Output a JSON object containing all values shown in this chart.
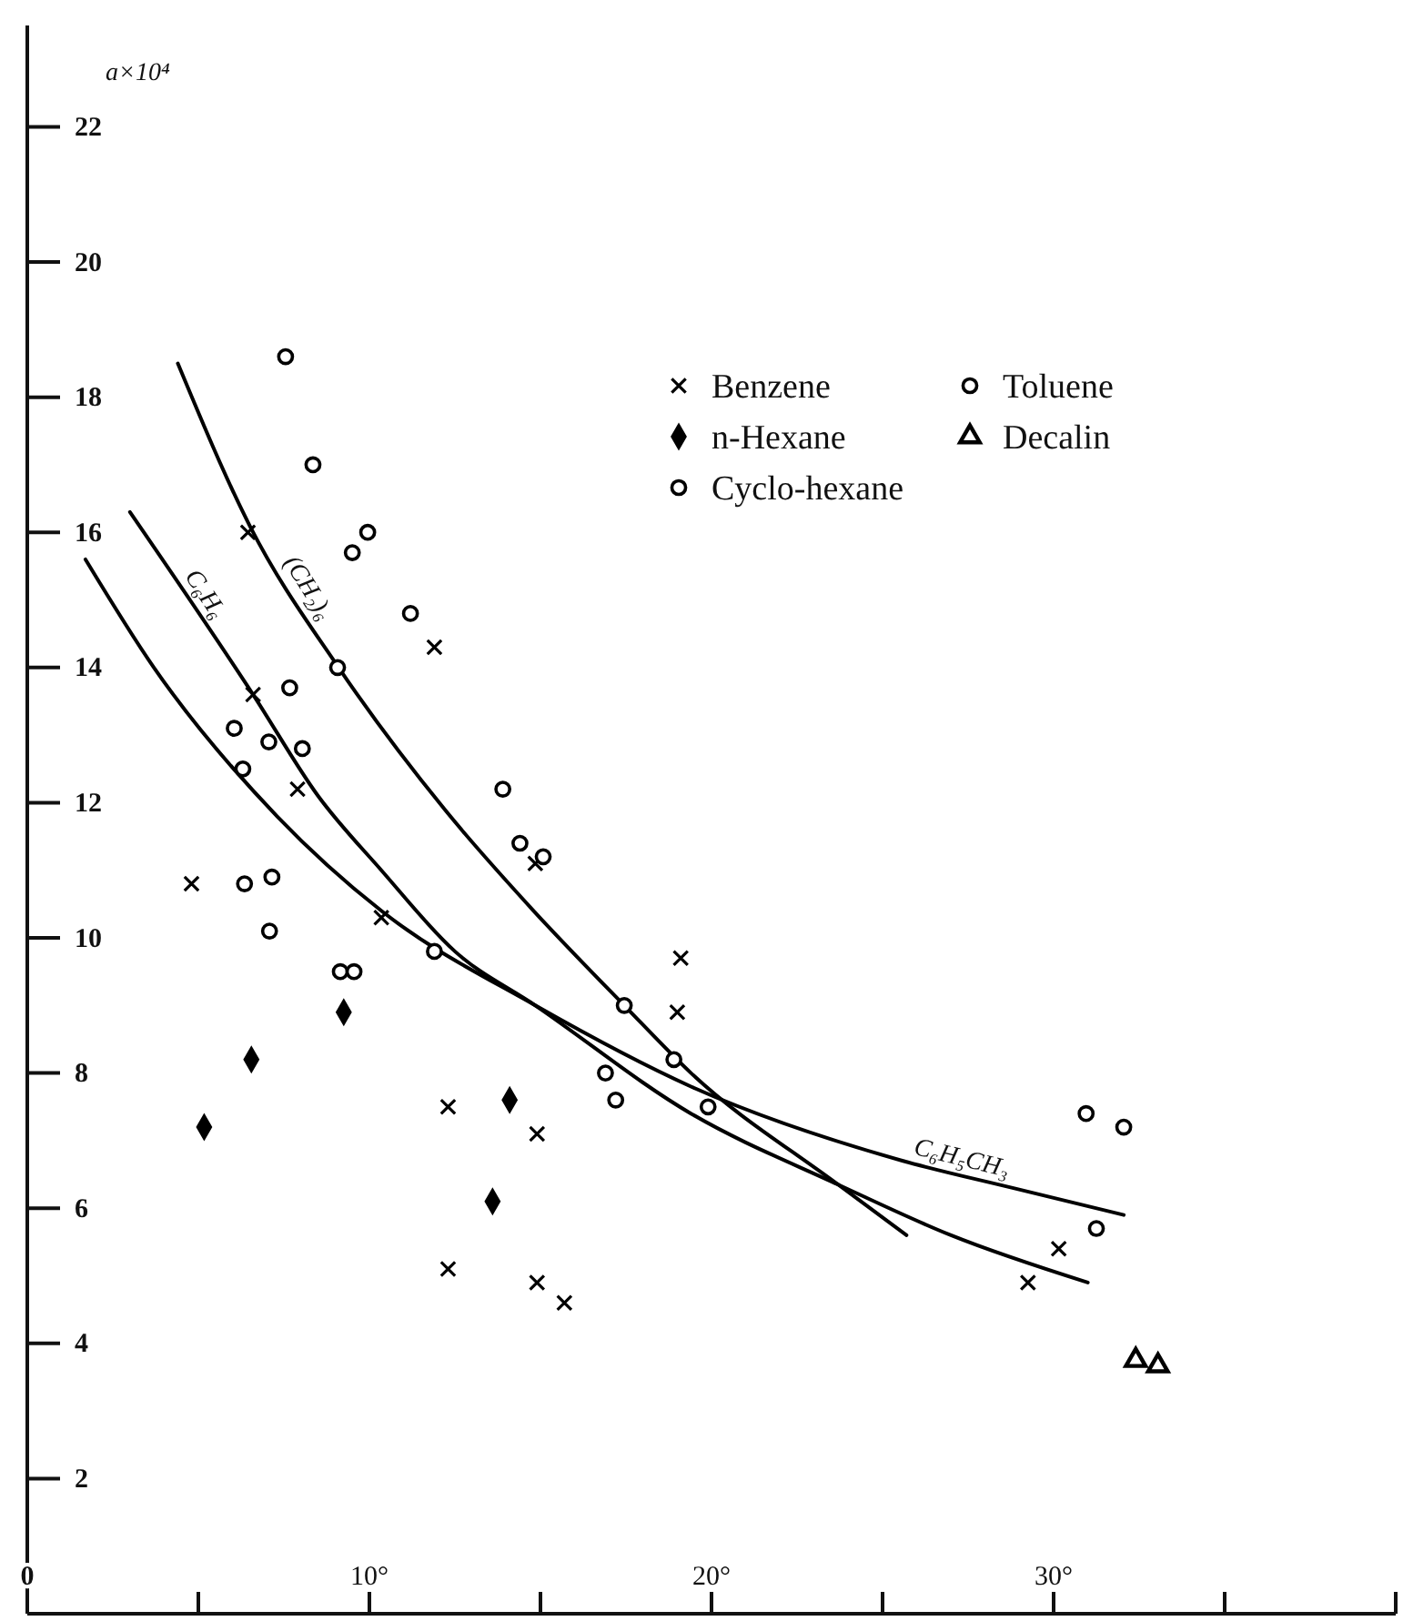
{
  "chart_data": {
    "type": "scatter",
    "ylabel": "a×10⁴",
    "xlim": [
      0,
      40
    ],
    "ylim": [
      0,
      23.5
    ],
    "xticks": [
      {
        "value": 0,
        "label": "0"
      },
      {
        "value": 5,
        "label": null
      },
      {
        "value": 10,
        "label": "10°"
      },
      {
        "value": 15,
        "label": null
      },
      {
        "value": 20,
        "label": "20°"
      },
      {
        "value": 25,
        "label": null
      },
      {
        "value": 30,
        "label": "30°"
      },
      {
        "value": 35,
        "label": null
      },
      {
        "value": 40,
        "label": null
      }
    ],
    "yticks": [
      2,
      4,
      6,
      8,
      10,
      12,
      14,
      16,
      18,
      20,
      22
    ],
    "grid": false,
    "legend": "top right",
    "series": [
      {
        "name": "Benzene",
        "type": "scatter",
        "marker": "cross",
        "color": "#000000",
        "x": [
          6.45,
          6.6,
          7.9,
          11.9,
          4.8,
          10.35,
          12.3,
          14.9,
          12.3,
          14.9,
          15.7,
          19.1,
          19.0,
          14.85,
          30.15,
          29.25
        ],
        "values": [
          16.0,
          13.6,
          12.2,
          14.3,
          10.8,
          10.3,
          7.5,
          7.1,
          5.1,
          4.9,
          4.6,
          9.7,
          8.9,
          11.1,
          5.4,
          4.9
        ]
      },
      {
        "name": "Toluene",
        "type": "scatter",
        "marker": "circle",
        "color": "#000000",
        "x": [
          7.55,
          7.67,
          6.05,
          6.3,
          6.35,
          7.08,
          11.9,
          14.4,
          16.9,
          17.2,
          30.95,
          32.05,
          31.25
        ],
        "values": [
          18.6,
          13.7,
          13.1,
          12.5,
          10.8,
          10.1,
          9.8,
          11.4,
          8.0,
          7.6,
          7.4,
          7.2,
          5.7
        ]
      },
      {
        "name": "n-Hexane",
        "type": "scatter",
        "marker": "diamond",
        "color": "#000000",
        "x": [
          5.17,
          6.55,
          9.25,
          14.1,
          13.6
        ],
        "values": [
          7.2,
          8.2,
          8.9,
          7.6,
          6.1
        ]
      },
      {
        "name": "Decalin",
        "type": "scatter",
        "marker": "triangle",
        "color": "#000000",
        "x": [
          32.4,
          33.05
        ],
        "values": [
          3.75,
          3.67
        ]
      },
      {
        "name": "Cyclo-hexane",
        "type": "scatter",
        "marker": "circle",
        "color": "#000000",
        "x": [
          8.35,
          9.95,
          9.5,
          11.2,
          9.07,
          7.06,
          8.04,
          13.9,
          7.15,
          9.15,
          9.55,
          15.08,
          17.45,
          18.9,
          19.9
        ],
        "values": [
          17.0,
          16.0,
          15.7,
          14.8,
          14.0,
          12.9,
          12.8,
          12.2,
          10.9,
          9.5,
          9.5,
          11.2,
          9.0,
          8.2,
          7.5
        ]
      },
      {
        "name": "(CH₂)₆",
        "type": "line",
        "marker": "none",
        "color": "#000000",
        "x": [
          4.4,
          6.5,
          9.1,
          12.2,
          14.8,
          17.45,
          19.4,
          23.7,
          25.7
        ],
        "values": [
          18.5,
          16.1,
          14.0,
          11.9,
          10.4,
          9.0,
          8.0,
          6.35,
          5.6
        ]
      },
      {
        "name": "C₆H₆",
        "type": "line",
        "marker": "none",
        "color": "#000000",
        "x": [
          3.0,
          6.6,
          8.5,
          10.35,
          12.5,
          14.85,
          19.4,
          23.7,
          27,
          31.0
        ],
        "values": [
          16.3,
          13.6,
          12.1,
          11.0,
          9.8,
          9.0,
          7.4,
          6.35,
          5.6,
          4.9
        ]
      },
      {
        "name": "C₆H₅CH₃",
        "type": "line",
        "marker": "none",
        "color": "#000000",
        "x": [
          1.7,
          3.7,
          7.3,
          10.35,
          14.85,
          19.4,
          25.6,
          28.8,
          32.05
        ],
        "values": [
          15.6,
          14.0,
          11.8,
          10.4,
          9.0,
          7.8,
          6.7,
          6.3,
          5.9
        ]
      }
    ]
  }
}
